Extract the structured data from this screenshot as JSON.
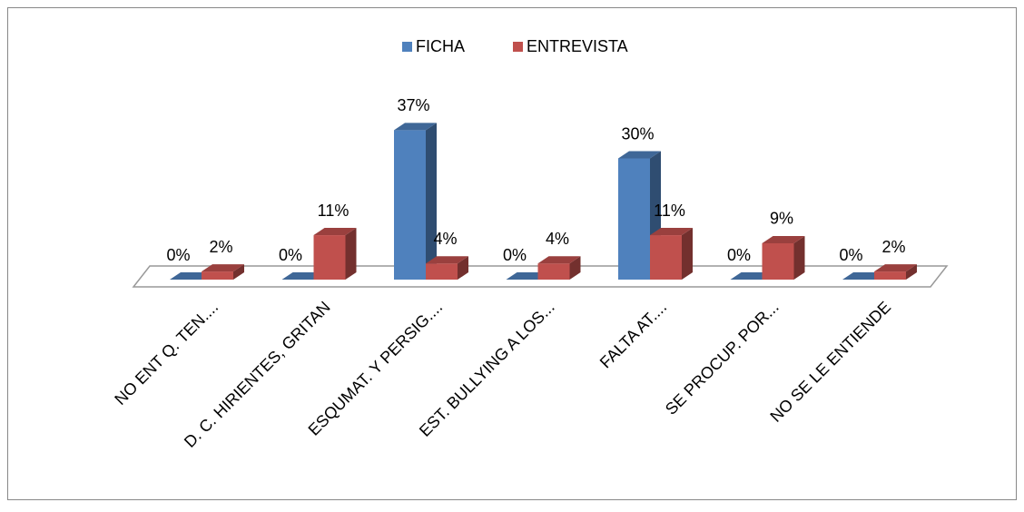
{
  "chart_data": {
    "type": "bar3d",
    "categories": [
      "NO ENT Q. TEN....",
      "D. C. HIRIENTES, GRITAN",
      "ESQUMAT. Y PERSIG....",
      "EST. BULLYING A LOS...",
      "FALTA AT....",
      "SE PROCUP. POR...",
      "NO SE LE ENTIENDE"
    ],
    "series": [
      {
        "name": "FICHA",
        "color": "#4f81bd",
        "values": [
          0,
          0,
          37,
          0,
          30,
          0,
          0
        ],
        "value_labels": [
          "0%",
          "0%",
          "37%",
          "0%",
          "30%",
          "0%",
          "0%"
        ]
      },
      {
        "name": "ENTREVISTA",
        "color": "#c0504d",
        "values": [
          2,
          11,
          4,
          4,
          11,
          9,
          2
        ],
        "value_labels": [
          "2%",
          "11%",
          "4%",
          "4%",
          "11%",
          "9%",
          "2%"
        ]
      }
    ],
    "legend": "top"
  }
}
